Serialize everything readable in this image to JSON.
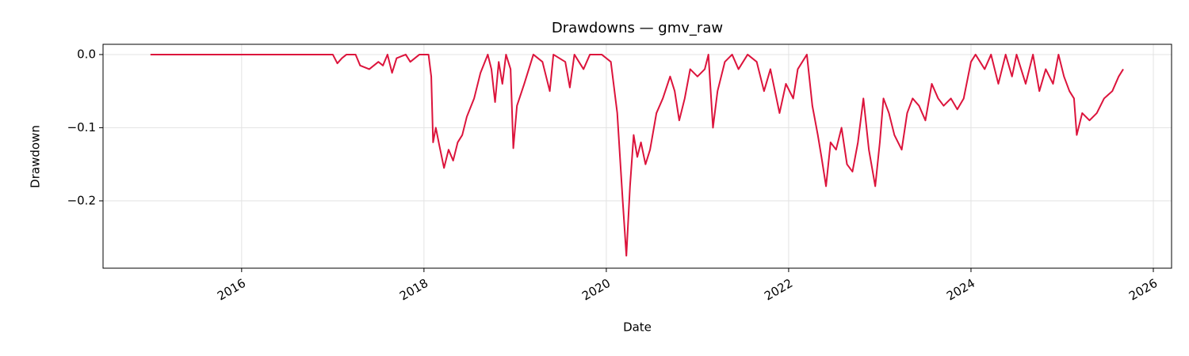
{
  "chart_data": {
    "type": "line",
    "title": "Drawdowns — gmv_raw",
    "x_label": "Date",
    "y_label": "Drawdown",
    "color": "#dc143c",
    "grid": true,
    "xlim": [
      2014.48,
      2026.2
    ],
    "ylim": [
      -0.292,
      0.014
    ],
    "xticks": [
      2016,
      2018,
      2020,
      2022,
      2024,
      2026
    ],
    "yticks": [
      {
        "value": 0,
        "label": "0.0"
      },
      {
        "value": -0.1,
        "label": "−0.1"
      },
      {
        "value": -0.2,
        "label": "−0.2"
      }
    ],
    "x": [
      2015.0,
      2017.0,
      2017.05,
      2017.1,
      2017.15,
      2017.25,
      2017.3,
      2017.4,
      2017.5,
      2017.55,
      2017.6,
      2017.65,
      2017.7,
      2017.8,
      2017.85,
      2017.95,
      2018.05,
      2018.08,
      2018.1,
      2018.13,
      2018.17,
      2018.22,
      2018.27,
      2018.32,
      2018.37,
      2018.42,
      2018.47,
      2018.55,
      2018.62,
      2018.7,
      2018.74,
      2018.78,
      2018.82,
      2018.86,
      2018.9,
      2018.95,
      2018.98,
      2019.02,
      2019.1,
      2019.2,
      2019.3,
      2019.38,
      2019.42,
      2019.55,
      2019.6,
      2019.65,
      2019.75,
      2019.82,
      2019.95,
      2020.05,
      2020.12,
      2020.18,
      2020.22,
      2020.26,
      2020.3,
      2020.34,
      2020.38,
      2020.43,
      2020.48,
      2020.55,
      2020.62,
      2020.7,
      2020.75,
      2020.8,
      2020.86,
      2020.92,
      2021.0,
      2021.08,
      2021.12,
      2021.17,
      2021.22,
      2021.3,
      2021.38,
      2021.45,
      2021.55,
      2021.65,
      2021.73,
      2021.8,
      2021.9,
      2021.97,
      2022.05,
      2022.1,
      2022.2,
      2022.26,
      2022.32,
      2022.36,
      2022.41,
      2022.46,
      2022.52,
      2022.58,
      2022.64,
      2022.7,
      2022.76,
      2022.82,
      2022.88,
      2022.95,
      2023.0,
      2023.04,
      2023.1,
      2023.16,
      2023.24,
      2023.3,
      2023.36,
      2023.43,
      2023.5,
      2023.57,
      2023.64,
      2023.7,
      2023.78,
      2023.85,
      2023.92,
      2024.0,
      2024.05,
      2024.15,
      2024.22,
      2024.3,
      2024.38,
      2024.45,
      2024.5,
      2024.6,
      2024.68,
      2024.75,
      2024.82,
      2024.9,
      2024.96,
      2025.02,
      2025.08,
      2025.13,
      2025.16,
      2025.22,
      2025.3,
      2025.38,
      2025.46,
      2025.55,
      2025.62,
      2025.67
    ],
    "values": [
      0,
      0,
      -0.012,
      -0.005,
      0,
      0,
      -0.015,
      -0.02,
      -0.01,
      -0.015,
      0,
      -0.025,
      -0.005,
      0,
      -0.01,
      0,
      0,
      -0.03,
      -0.12,
      -0.1,
      -0.125,
      -0.155,
      -0.13,
      -0.145,
      -0.12,
      -0.11,
      -0.085,
      -0.06,
      -0.025,
      0,
      -0.02,
      -0.065,
      -0.01,
      -0.04,
      0,
      -0.02,
      -0.128,
      -0.07,
      -0.04,
      0,
      -0.01,
      -0.05,
      0,
      -0.01,
      -0.045,
      0,
      -0.02,
      0,
      0,
      -0.01,
      -0.08,
      -0.2,
      -0.275,
      -0.18,
      -0.11,
      -0.14,
      -0.12,
      -0.15,
      -0.13,
      -0.08,
      -0.06,
      -0.03,
      -0.05,
      -0.09,
      -0.06,
      -0.02,
      -0.03,
      -0.02,
      0,
      -0.1,
      -0.05,
      -0.01,
      0,
      -0.02,
      0,
      -0.01,
      -0.05,
      -0.02,
      -0.08,
      -0.04,
      -0.06,
      -0.02,
      0,
      -0.07,
      -0.11,
      -0.14,
      -0.18,
      -0.12,
      -0.13,
      -0.1,
      -0.15,
      -0.16,
      -0.12,
      -0.06,
      -0.13,
      -0.18,
      -0.12,
      -0.06,
      -0.08,
      -0.11,
      -0.13,
      -0.08,
      -0.06,
      -0.07,
      -0.09,
      -0.04,
      -0.06,
      -0.07,
      -0.06,
      -0.075,
      -0.06,
      -0.01,
      0,
      -0.02,
      0,
      -0.04,
      0,
      -0.03,
      0,
      -0.04,
      0,
      -0.05,
      -0.02,
      -0.04,
      0,
      -0.03,
      -0.05,
      -0.06,
      -0.11,
      -0.08,
      -0.09,
      -0.08,
      -0.06,
      -0.05,
      -0.03,
      -0.02
    ]
  }
}
